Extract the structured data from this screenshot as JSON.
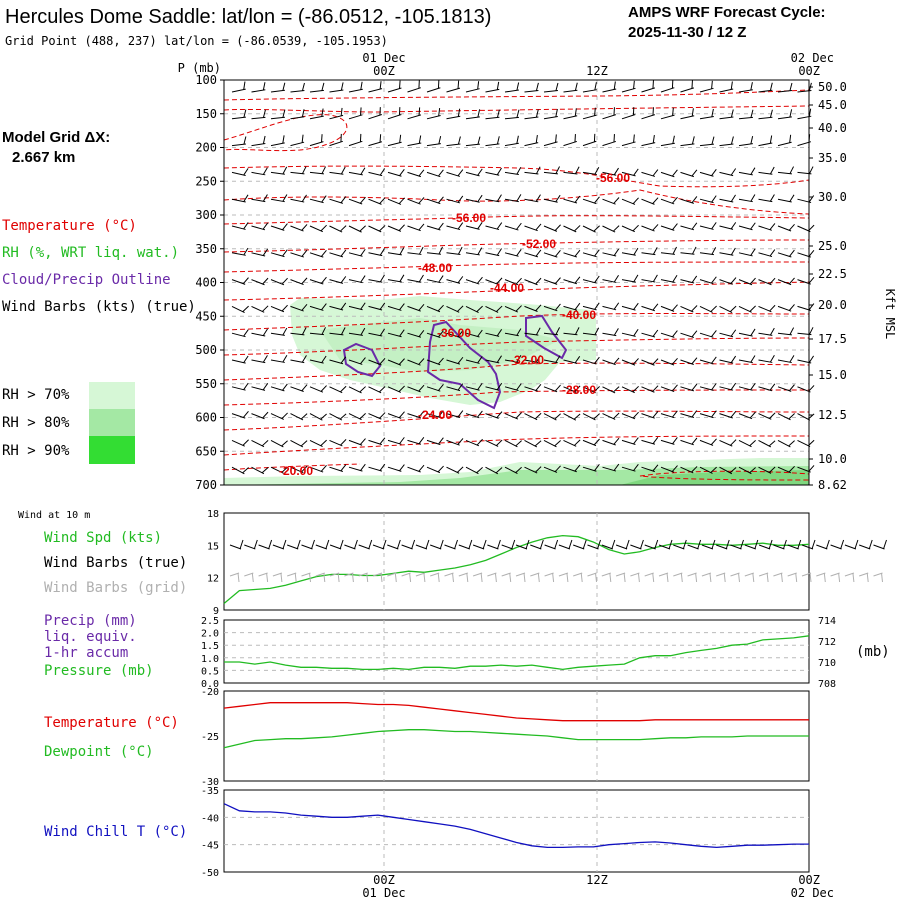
{
  "header": {
    "title": "Hercules Dome Saddle:  lat/lon = (-86.0512, -105.1813)",
    "grid_point": "Grid Point (488, 237) lat/lon = (-86.0539, -105.1953)",
    "cycle_label": "AMPS WRF Forecast Cycle:",
    "cycle_value": "2025-11-30 / 12  Z"
  },
  "sidebar": {
    "model_grid_label": "Model Grid ΔX:",
    "model_grid_value": "2.667 km",
    "temperature": "Temperature (°C)",
    "rh": "RH (%, WRT liq. wat.)",
    "cloud": "Cloud/Precip Outline",
    "wind_barbs": "Wind Barbs (kts) (true)",
    "rh70": "RH > 70%",
    "rh80": "RH > 80%",
    "rh90": "RH > 90%"
  },
  "colors": {
    "temp": "#e00000",
    "rh": "#22bb22",
    "cloud": "#6a2aa8",
    "barb_true": "#000000",
    "barb_grid": "#b0b0b0",
    "windchill": "#1010c0",
    "rh70": "#d6f7d6",
    "rh80": "#a4e8a4",
    "rh90": "#33dd33"
  },
  "time_axis": {
    "top_labels": [
      {
        "date": "01 Dec",
        "time": "00Z"
      },
      {
        "date": "",
        "time": "12Z"
      },
      {
        "date": "02 Dec",
        "time": "00Z"
      }
    ],
    "bottom_labels": [
      {
        "time": "00Z",
        "date": "01 Dec"
      },
      {
        "time": "12Z",
        "date": ""
      },
      {
        "time": "00Z",
        "date": "02 Dec"
      }
    ],
    "p_unit": "P (mb)",
    "kft_label": "Kft MSL"
  },
  "chart_data": [
    {
      "type": "line",
      "name": "cross-section",
      "pressure_levels": [
        100,
        150,
        200,
        250,
        300,
        350,
        400,
        450,
        500,
        550,
        600,
        650,
        700
      ],
      "height_kft": [
        "50.0",
        "45.0",
        "40.0",
        "35.0",
        "30.0",
        "25.0",
        "22.5",
        "20.0",
        "17.5",
        "15.0",
        "12.5",
        "10.0",
        "8.62"
      ],
      "temperature_contour_labels": [
        "-56.00",
        "-56.00",
        "-52.00",
        "-48.00",
        "-44.00",
        "-40.00",
        "-36.00",
        "-32.00",
        "-28.00",
        "-24.00",
        "-20.00"
      ]
    },
    {
      "type": "line",
      "name": "wind-10m",
      "title": "Wind at 10 m",
      "series_labels": [
        "Wind Spd (kts)",
        "Wind Barbs (true)",
        "Wind Barbs (grid)"
      ],
      "y_ticks": [
        "18",
        "15",
        "12",
        "9"
      ],
      "ylim": [
        9,
        18
      ],
      "x": [
        0,
        1,
        2,
        3,
        4,
        5,
        6,
        7,
        8,
        9,
        10,
        11,
        12,
        13,
        14,
        15,
        16,
        17,
        18,
        19,
        20,
        21,
        22,
        23,
        24,
        25,
        26,
        27,
        28,
        29,
        30,
        31,
        32,
        33,
        34,
        35,
        36,
        37,
        38
      ],
      "values": [
        9.6,
        10.8,
        10.9,
        11.0,
        11.3,
        11.7,
        12.1,
        12.3,
        12.3,
        12.2,
        12.2,
        12.4,
        12.6,
        12.5,
        12.7,
        12.9,
        13.2,
        13.6,
        14.2,
        14.8,
        15.3,
        15.7,
        15.9,
        15.8,
        15.3,
        14.6,
        14.2,
        14.4,
        14.8,
        15.1,
        15.2,
        15.1,
        15.1,
        15.0,
        15.1,
        15.2,
        15.0,
        15.0,
        15.1
      ]
    },
    {
      "type": "line",
      "name": "precip-pressure",
      "series_labels": [
        "Precip (mm)",
        "liq. equiv.",
        "1-hr accum",
        "Pressure (mb)"
      ],
      "y_left_ticks": [
        "2.5",
        "2.0",
        "1.5",
        "1.0",
        "0.5",
        "0.0"
      ],
      "y_right_ticks": [
        "714",
        "712",
        "710",
        "708"
      ],
      "y_right_unit": "(mb)",
      "ylim": [
        708,
        714
      ],
      "x": [
        0,
        1,
        2,
        3,
        4,
        5,
        6,
        7,
        8,
        9,
        10,
        11,
        12,
        13,
        14,
        15,
        16,
        17,
        18,
        19,
        20,
        21,
        22,
        23,
        24,
        25,
        26,
        27,
        28,
        29,
        30,
        31,
        32,
        33,
        34,
        35,
        36,
        37,
        38
      ],
      "values": [
        710.0,
        710.0,
        709.8,
        710.0,
        709.7,
        709.5,
        709.5,
        709.4,
        709.4,
        709.3,
        709.3,
        709.4,
        709.3,
        709.5,
        709.5,
        709.4,
        709.6,
        709.6,
        709.7,
        709.6,
        709.7,
        709.5,
        709.3,
        709.5,
        709.6,
        709.7,
        709.8,
        710.4,
        710.6,
        710.6,
        710.9,
        711.1,
        711.3,
        711.6,
        711.7,
        712.1,
        712.2,
        712.3,
        712.5
      ]
    },
    {
      "type": "line",
      "name": "temperature-dewpoint",
      "series_labels": [
        "Temperature (°C)",
        "Dewpoint (°C)"
      ],
      "y_ticks": [
        "-20",
        "-25",
        "-30"
      ],
      "ylim": [
        -30,
        -20
      ],
      "x": [
        0,
        1,
        2,
        3,
        4,
        5,
        6,
        7,
        8,
        9,
        10,
        11,
        12,
        13,
        14,
        15,
        16,
        17,
        18,
        19,
        20,
        21,
        22,
        23,
        24,
        25,
        26,
        27,
        28,
        29,
        30,
        31,
        32,
        33,
        34,
        35,
        36,
        37,
        38
      ],
      "series": [
        {
          "name": "Temperature (°C)",
          "values": [
            -21.9,
            -21.7,
            -21.5,
            -21.3,
            -21.3,
            -21.3,
            -21.3,
            -21.3,
            -21.3,
            -21.4,
            -21.5,
            -21.5,
            -21.6,
            -21.8,
            -22.0,
            -22.2,
            -22.4,
            -22.6,
            -22.8,
            -23.0,
            -23.1,
            -23.2,
            -23.3,
            -23.3,
            -23.3,
            -23.3,
            -23.3,
            -23.3,
            -23.2,
            -23.2,
            -23.2,
            -23.2,
            -23.2,
            -23.2,
            -23.2,
            -23.2,
            -23.2,
            -23.2,
            -23.2
          ]
        },
        {
          "name": "Dewpoint (°C)",
          "values": [
            -26.3,
            -25.9,
            -25.5,
            -25.4,
            -25.3,
            -25.3,
            -25.2,
            -25.1,
            -24.9,
            -24.7,
            -24.5,
            -24.4,
            -24.3,
            -24.3,
            -24.4,
            -24.5,
            -24.5,
            -24.6,
            -24.7,
            -24.8,
            -24.9,
            -25.0,
            -25.2,
            -25.4,
            -25.4,
            -25.4,
            -25.4,
            -25.4,
            -25.3,
            -25.2,
            -25.2,
            -25.1,
            -25.1,
            -25.1,
            -25.0,
            -25.0,
            -25.0,
            -25.0,
            -25.0
          ]
        }
      ]
    },
    {
      "type": "line",
      "name": "wind-chill",
      "series_labels": [
        "Wind Chill T (°C)"
      ],
      "y_ticks": [
        "-35",
        "-40",
        "-45",
        "-50"
      ],
      "ylim": [
        -50,
        -35
      ],
      "x": [
        0,
        1,
        2,
        3,
        4,
        5,
        6,
        7,
        8,
        9,
        10,
        11,
        12,
        13,
        14,
        15,
        16,
        17,
        18,
        19,
        20,
        21,
        22,
        23,
        24,
        25,
        26,
        27,
        28,
        29,
        30,
        31,
        32,
        33,
        34,
        35,
        36,
        37,
        38
      ],
      "values": [
        -37.5,
        -38.8,
        -39.0,
        -39.0,
        -39.2,
        -39.6,
        -39.8,
        -40.0,
        -40.0,
        -39.8,
        -39.6,
        -40.0,
        -40.4,
        -40.8,
        -41.2,
        -41.6,
        -42.2,
        -43.0,
        -43.8,
        -44.6,
        -45.2,
        -45.5,
        -45.5,
        -45.4,
        -45.4,
        -45.0,
        -44.8,
        -44.6,
        -44.5,
        -44.7,
        -45.0,
        -45.3,
        -45.5,
        -45.3,
        -45.1,
        -45.1,
        -45.0,
        -44.9,
        -44.9
      ]
    }
  ]
}
